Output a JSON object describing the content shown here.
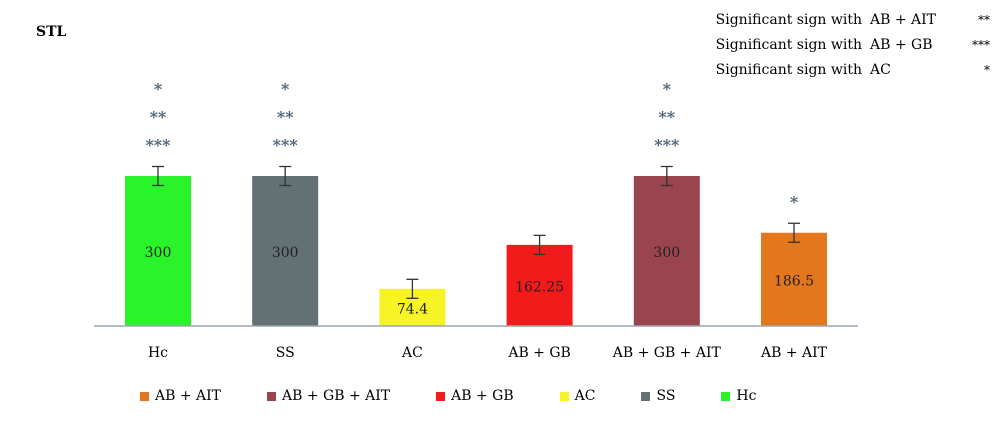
{
  "panel_label": "STL",
  "significance_notes": [
    {
      "text": "Significant sign with",
      "group": "AB + AIT",
      "mark": "**"
    },
    {
      "text": "Significant sign with",
      "group": "AB + GB",
      "mark": "***"
    },
    {
      "text": "Significant sign with",
      "group": "AC",
      "mark": "*"
    }
  ],
  "legend": [
    {
      "label": "AB + AIT",
      "color": "#E2771E"
    },
    {
      "label": "AB + GB + AIT",
      "color": "#9A4450"
    },
    {
      "label": "AB + GB",
      "color": "#F21B1B"
    },
    {
      "label": "AC",
      "color": "#F8F324"
    },
    {
      "label": "SS",
      "color": "#637174"
    },
    {
      "label": "Hc",
      "color": "#2AF32A"
    }
  ],
  "chart_data": {
    "type": "bar",
    "title": "",
    "xlabel": "",
    "ylabel": "",
    "categories": [
      "Hc",
      "SS",
      "AC",
      "AB + GB",
      "AB + GB + AIT",
      "AB +  AIT"
    ],
    "values": [
      300,
      300,
      74.4,
      162.25,
      300,
      186.5
    ],
    "value_labels": [
      "300",
      "300",
      "74.4",
      "162.25",
      "300",
      "186.5"
    ],
    "error": [
      38,
      38,
      38,
      38,
      38,
      38
    ],
    "colors": [
      "#2AF32A",
      "#637174",
      "#F8F324",
      "#F21B1B",
      "#9A4450",
      "#E2771E"
    ],
    "significance": [
      [
        "*",
        "**",
        "***"
      ],
      [
        "*",
        "**",
        "***"
      ],
      [],
      [],
      [
        "*",
        "**",
        "***"
      ],
      [
        "*"
      ]
    ],
    "ylim": [
      0,
      300
    ],
    "grid": false,
    "legend_position": "bottom"
  }
}
